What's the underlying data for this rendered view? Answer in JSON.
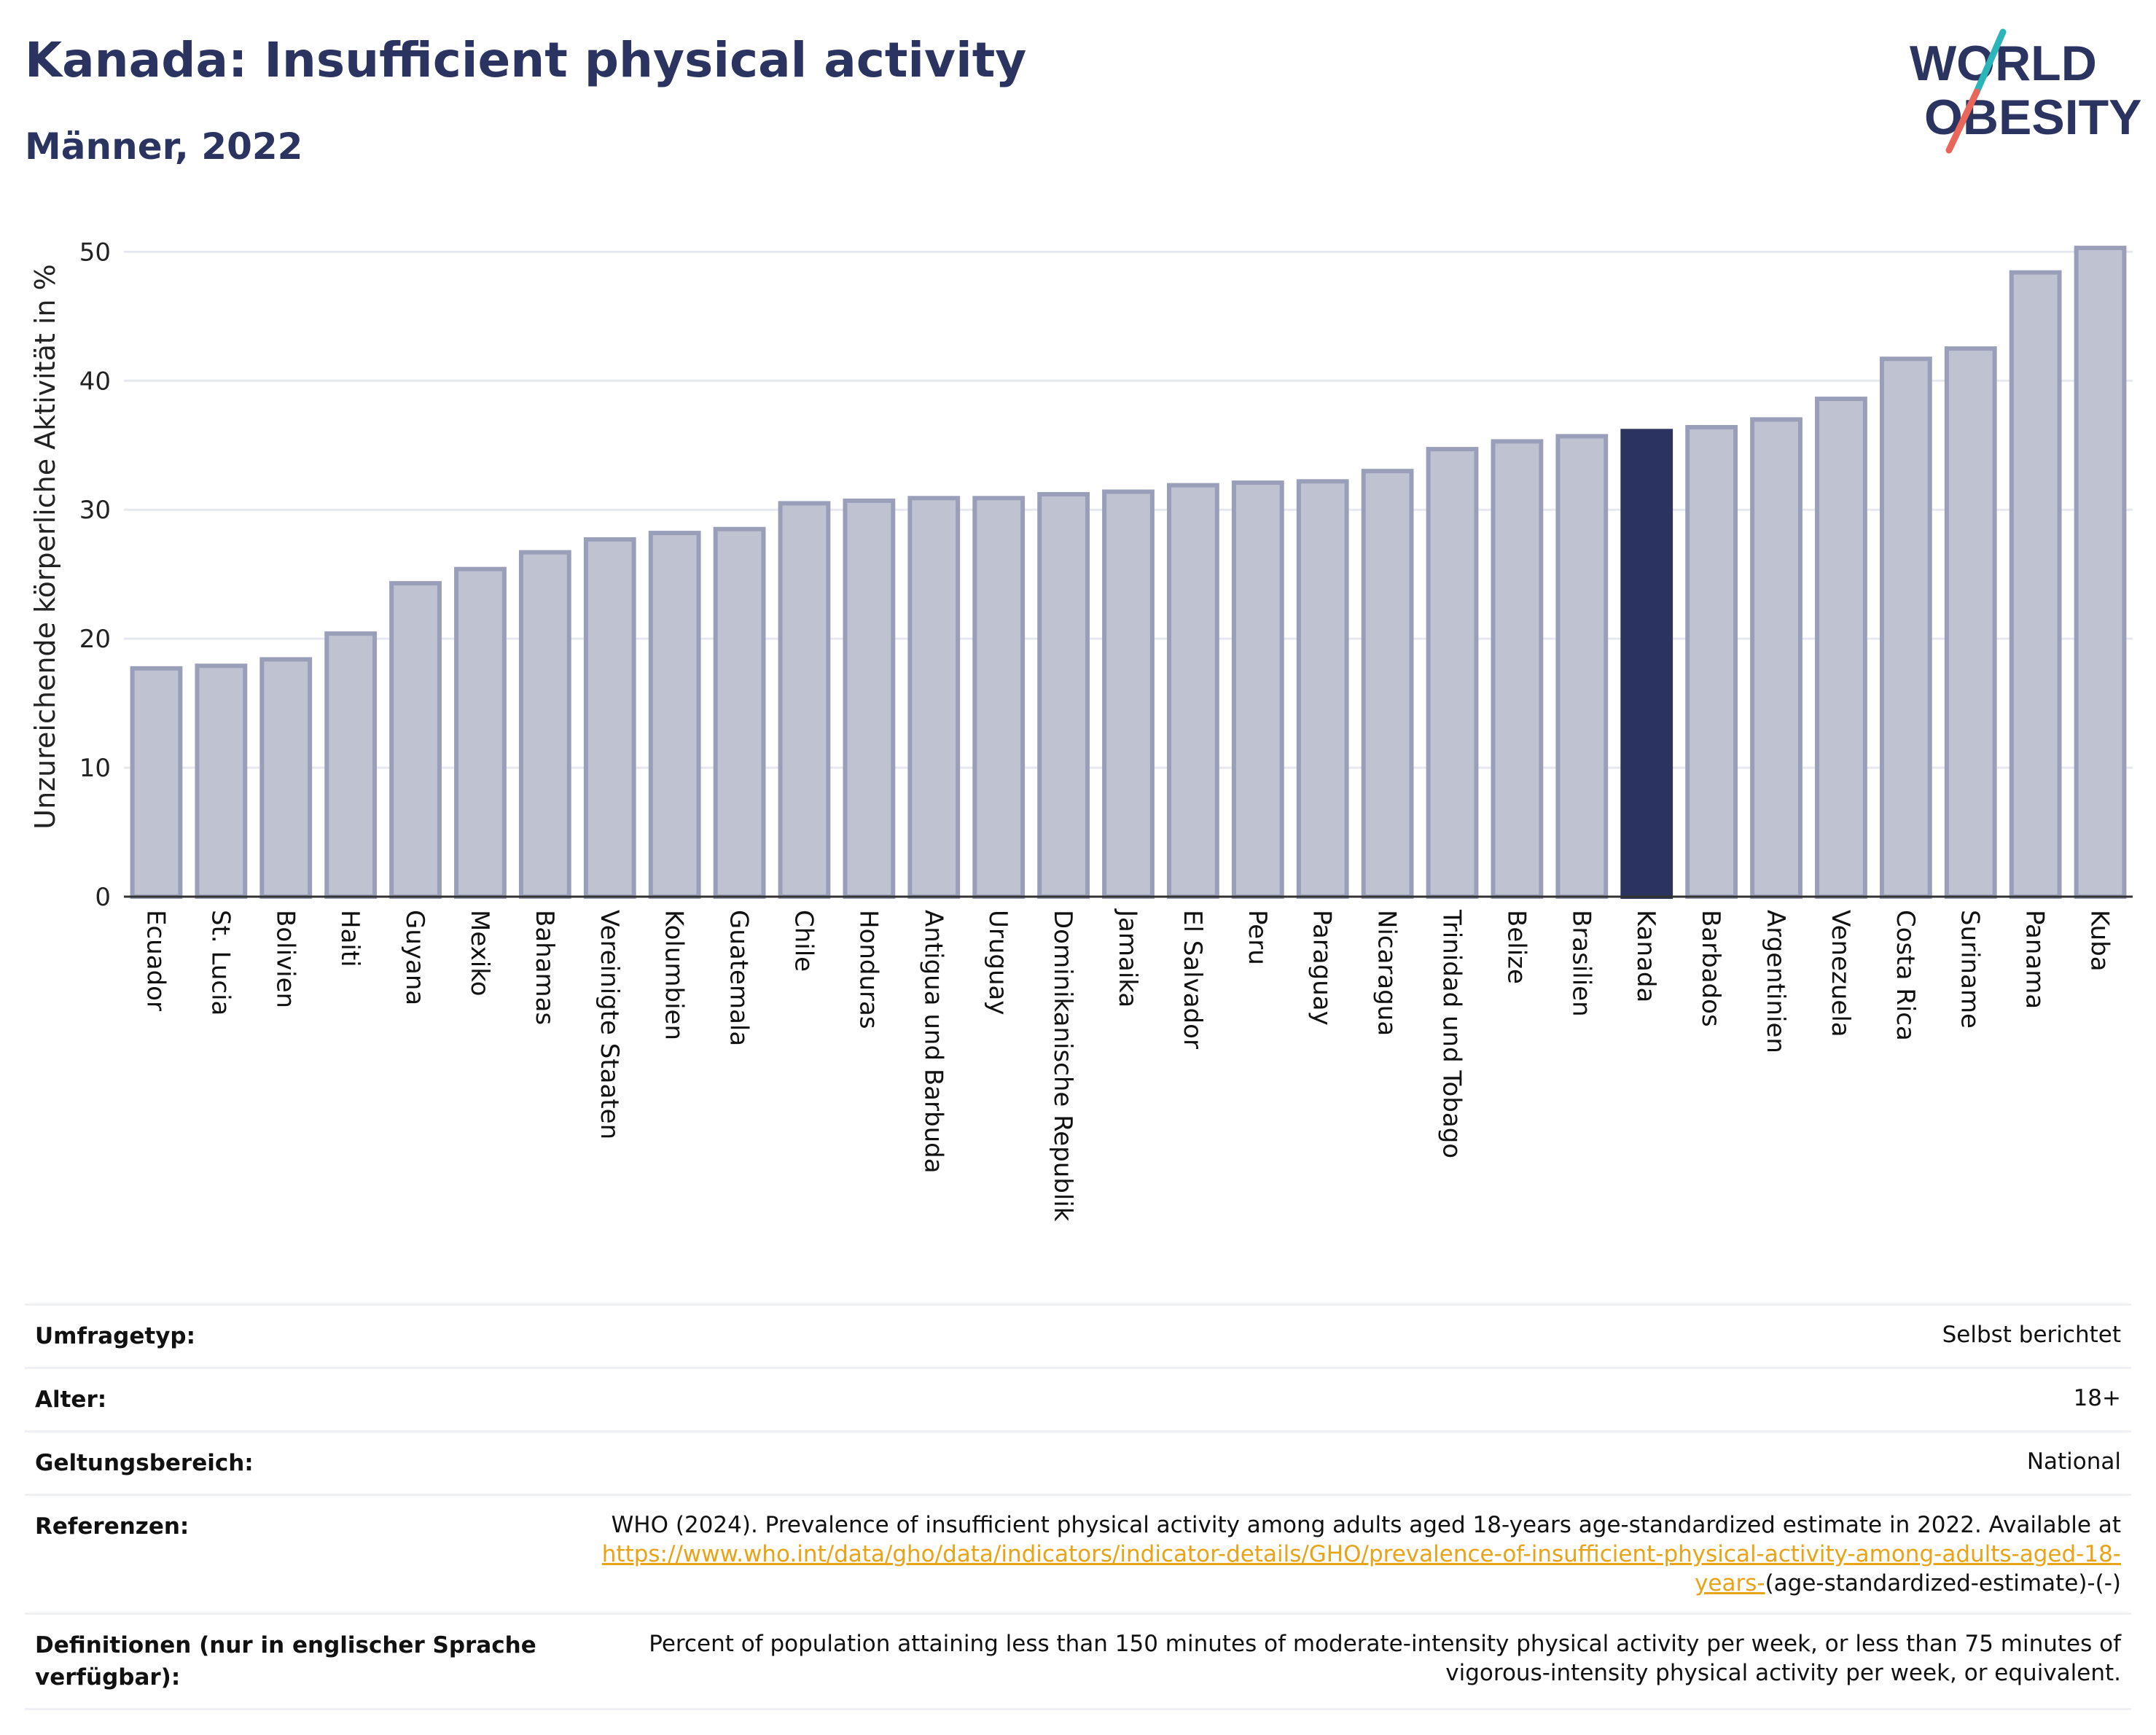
{
  "header": {
    "title": "Kanada: Insufficient physical activity",
    "subtitle": "Männer, 2022"
  },
  "logo": {
    "line1": "WORLD",
    "line2": "OBESITY",
    "text_color": "#2b3460",
    "slash_colors": [
      "#2bb5b8",
      "#e8675a"
    ]
  },
  "colors": {
    "bar_fill": "#bfc2d1",
    "bar_stroke": "#9a9fb9",
    "highlight_fill": "#2b3460",
    "grid": "#e6e8f0",
    "text": "#2b3460"
  },
  "chart_data": {
    "type": "bar",
    "ylabel": "Unzureichende körperliche Aktivität in %",
    "xlabel": "",
    "ylim": [
      0,
      52
    ],
    "yticks": [
      0,
      10,
      20,
      30,
      40,
      50
    ],
    "grid": true,
    "highlight": "Kanada",
    "categories": [
      "Ecuador",
      "St. Lucia",
      "Bolivien",
      "Haiti",
      "Guyana",
      "Mexiko",
      "Bahamas",
      "Vereinigte Staaten",
      "Kolumbien",
      "Guatemala",
      "Chile",
      "Honduras",
      "Antigua und Barbuda",
      "Uruguay",
      "Dominikanische Republik",
      "Jamaika",
      "El Salvador",
      "Peru",
      "Paraguay",
      "Nicaragua",
      "Trinidad und Tobago",
      "Belize",
      "Brasilien",
      "Kanada",
      "Barbados",
      "Argentinien",
      "Venezuela",
      "Costa Rica",
      "Suriname",
      "Panama",
      "Kuba"
    ],
    "values": [
      17.7,
      17.9,
      18.4,
      20.4,
      24.3,
      25.4,
      26.7,
      27.7,
      28.2,
      28.5,
      30.5,
      30.7,
      30.9,
      30.9,
      31.2,
      31.4,
      31.9,
      32.1,
      32.2,
      33.0,
      34.7,
      35.3,
      35.7,
      36.1,
      36.4,
      37.0,
      38.6,
      41.7,
      42.5,
      48.4,
      50.3
    ]
  },
  "info": {
    "survey_label": "Umfragetyp:",
    "survey_value": "Selbst berichtet",
    "age_label": "Alter:",
    "age_value": "18+",
    "scope_label": "Geltungsbereich:",
    "scope_value": "National",
    "ref_label": "Referenzen:",
    "ref_text": "WHO (2024). Prevalence of insufficient physical activity among adults aged 18-years age-standardized estimate in 2022. Available at",
    "ref_link": "https://www.who.int/data/gho/data/indicators/indicator-details/GHO/prevalence-of-insufficient-physical-activity-among-adults-aged-18-years-",
    "ref_suffix": "(age-standardized-estimate)-(-)",
    "def_label": "Definitionen (nur in englischer Sprache verfügbar):",
    "def_value": "Percent of population attaining less than 150 minutes of moderate-intensity physical activity per week, or less than 75 minutes of vigorous-intensity physical activity per week, or equivalent."
  }
}
